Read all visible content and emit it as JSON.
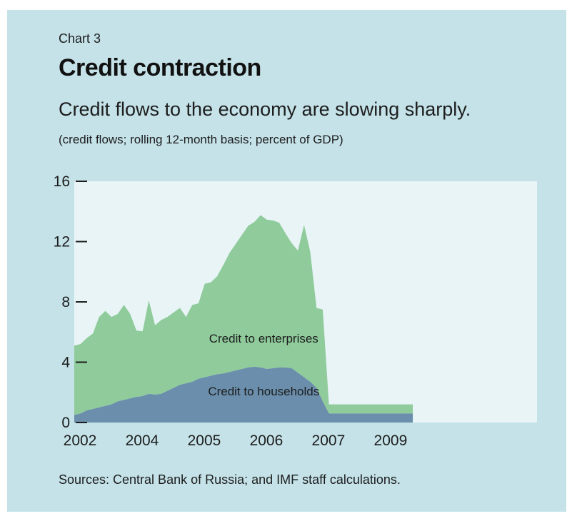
{
  "header": {
    "chart_number": "Chart 3",
    "title": "Credit contraction",
    "subtitle": "Credit flows to the economy are slowing sharply.",
    "note": "(credit flows; rolling 12-month basis; percent of GDP)"
  },
  "footer": {
    "source": "Sources: Central Bank of Russia; and IMF staff calculations."
  },
  "colors": {
    "panel_background": "#c4e2e8",
    "plot_background": "#e8f4f6",
    "enterprises": "#8fcb9b",
    "households": "#6a8eab"
  },
  "chart_data": {
    "type": "area",
    "stacked": true,
    "title": "Credit contraction",
    "subtitle": "Credit flows to the economy are slowing sharply.",
    "xlabel": "",
    "ylabel": "",
    "ylim": [
      0,
      16
    ],
    "xlim": [
      2002,
      2009.45
    ],
    "grid": false,
    "y_ticks": [
      {
        "value": 0,
        "label": "0"
      },
      {
        "value": 4,
        "label": "4"
      },
      {
        "value": 8,
        "label": "8"
      },
      {
        "value": 12,
        "label": "12"
      },
      {
        "value": 16,
        "label": "16"
      }
    ],
    "x_ticks": [
      {
        "value": 2002,
        "label": "2002"
      },
      {
        "value": 2003,
        "label": "2004"
      },
      {
        "value": 2004,
        "label": "2005"
      },
      {
        "value": 2005,
        "label": "2006"
      },
      {
        "value": 2006,
        "label": "2007"
      },
      {
        "value": 2007,
        "label": "2009"
      }
    ],
    "x": [
      2002.0,
      2002.1,
      2002.2,
      2002.3,
      2002.4,
      2002.5,
      2002.6,
      2002.7,
      2002.8,
      2002.9,
      2003.0,
      2003.1,
      2003.2,
      2003.3,
      2003.4,
      2003.5,
      2003.6,
      2003.7,
      2003.8,
      2003.9,
      2004.0,
      2004.1,
      2004.2,
      2004.3,
      2004.4,
      2004.5,
      2004.6,
      2004.7,
      2004.8,
      2004.9,
      2005.0,
      2005.1,
      2005.2,
      2005.3,
      2005.4,
      2005.5,
      2005.6,
      2005.7,
      2005.8,
      2005.9,
      2006.0,
      2006.1,
      2006.2,
      2006.3,
      2006.4,
      2006.5,
      2006.6,
      2006.7,
      2006.8,
      2006.9,
      2007.0,
      2007.1,
      2007.2,
      2007.3,
      2007.4,
      2007.45
    ],
    "series": [
      {
        "name": "Credit to households",
        "values": [
          0.5,
          0.6,
          0.8,
          0.9,
          1.0,
          1.1,
          1.2,
          1.4,
          1.5,
          1.6,
          1.7,
          1.75,
          1.9,
          1.85,
          1.9,
          2.1,
          2.3,
          2.5,
          2.6,
          2.7,
          2.9,
          3.0,
          3.1,
          3.2,
          3.25,
          3.35,
          3.45,
          3.55,
          3.65,
          3.7,
          3.65,
          3.55,
          3.6,
          3.65,
          3.65,
          3.6,
          3.3,
          3.0,
          2.7,
          2.3,
          1.4,
          0.6,
          0.6,
          0.6,
          0.6,
          0.6,
          0.6,
          0.6,
          0.6,
          0.6,
          0.6,
          0.6,
          0.6,
          0.6,
          0.6,
          0.6
        ]
      },
      {
        "name": "Credit to enterprises",
        "values": [
          4.6,
          4.6,
          4.8,
          5.0,
          6.0,
          6.3,
          5.8,
          5.8,
          6.3,
          5.6,
          4.4,
          4.3,
          6.2,
          4.6,
          4.9,
          4.9,
          5.0,
          5.1,
          4.4,
          5.1,
          5.0,
          6.2,
          6.2,
          6.5,
          7.2,
          7.9,
          8.4,
          8.9,
          9.4,
          9.6,
          10.1,
          9.9,
          9.8,
          9.6,
          8.9,
          8.3,
          8.1,
          10.1,
          8.6,
          5.3,
          6.1,
          0.6,
          0.6,
          0.6,
          0.6,
          0.6,
          0.6,
          0.6,
          0.6,
          0.6,
          0.6,
          0.6,
          0.6,
          0.6,
          0.6,
          0.6
        ]
      }
    ],
    "annotations": [
      {
        "text": "Credit to enterprises",
        "x": 2005.05,
        "y": 5.3
      },
      {
        "text": "Credit to households",
        "x": 2005.05,
        "y": 1.8
      }
    ]
  }
}
